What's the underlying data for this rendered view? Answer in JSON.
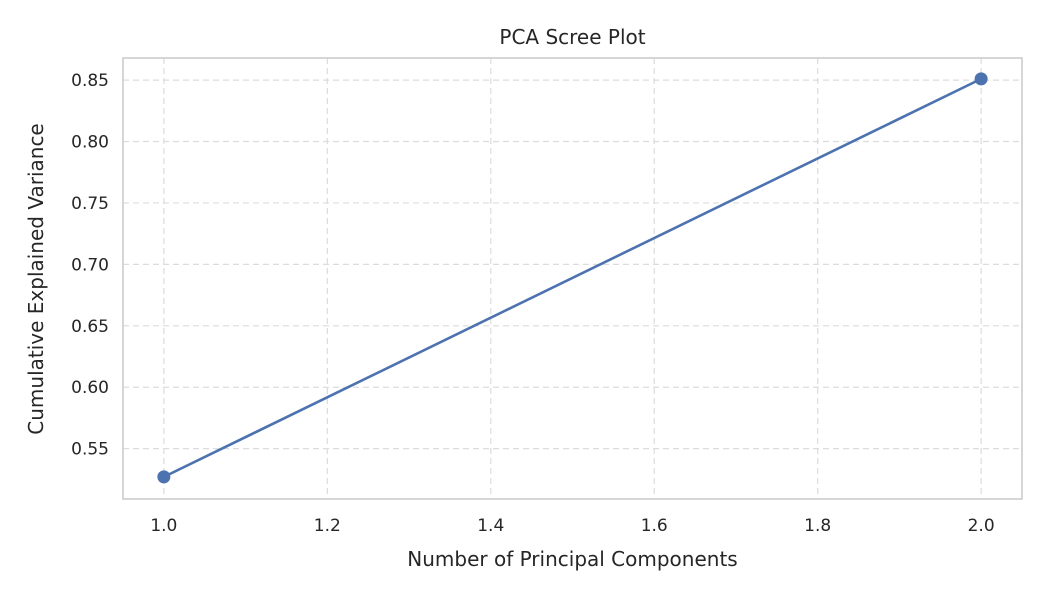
{
  "chart_data": {
    "type": "line",
    "title": "PCA Scree Plot",
    "xlabel": "Number of Principal Components",
    "ylabel": "Cumulative Explained Variance",
    "x": [
      1.0,
      2.0
    ],
    "series": [
      {
        "values": [
          0.527,
          0.851
        ],
        "color": "#4c72b0",
        "marker": "circle"
      }
    ],
    "xlim": [
      0.95,
      2.05
    ],
    "ylim": [
      0.509,
      0.868
    ],
    "xticks": [
      1.0,
      1.2,
      1.4,
      1.6,
      1.8,
      2.0
    ],
    "xtick_labels": [
      "1.0",
      "1.2",
      "1.4",
      "1.6",
      "1.8",
      "2.0"
    ],
    "yticks": [
      0.55,
      0.6,
      0.65,
      0.7,
      0.75,
      0.8,
      0.85
    ],
    "ytick_labels": [
      "0.55",
      "0.60",
      "0.65",
      "0.70",
      "0.75",
      "0.80",
      "0.85"
    ],
    "grid": true,
    "grid_style": "dashed",
    "legend": "none"
  }
}
